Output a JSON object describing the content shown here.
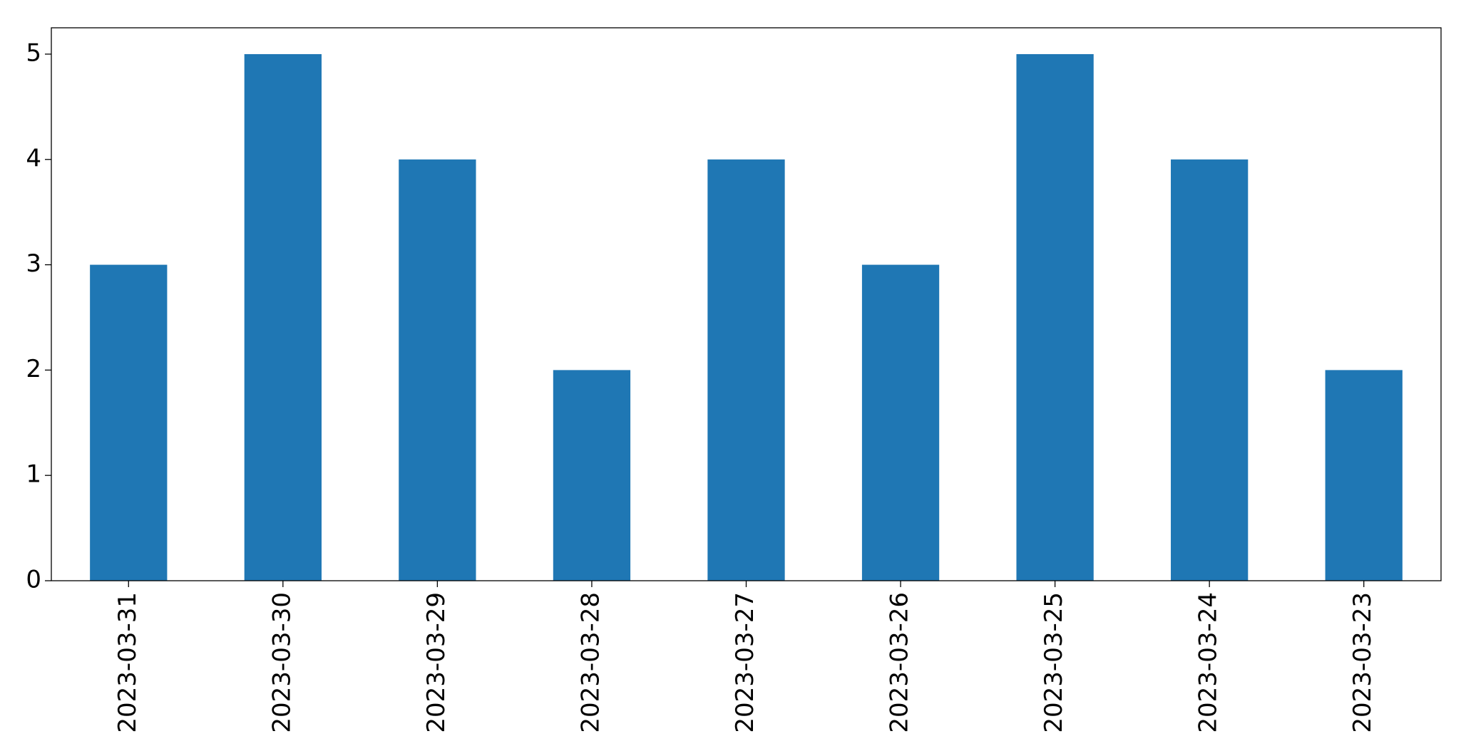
{
  "chart_data": {
    "type": "bar",
    "categories": [
      "2023-03-31",
      "2023-03-30",
      "2023-03-29",
      "2023-03-28",
      "2023-03-27",
      "2023-03-26",
      "2023-03-25",
      "2023-03-24",
      "2023-03-23"
    ],
    "values": [
      3,
      5,
      4,
      2,
      4,
      3,
      5,
      4,
      2
    ],
    "color": "#1f77b4",
    "ylim": [
      0,
      5.25
    ],
    "yticks": [
      0,
      1,
      2,
      3,
      4,
      5
    ],
    "grid": false
  }
}
